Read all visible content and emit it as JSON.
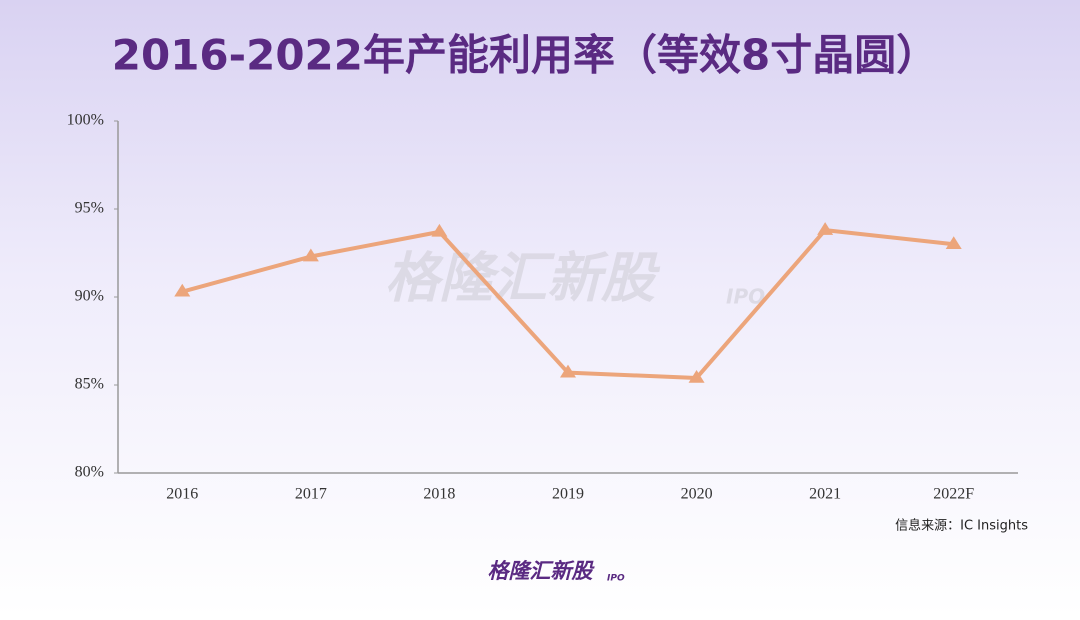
{
  "chart_data": {
    "type": "line",
    "title": "2016-2022年产能利用率（等效8寸晶圆）",
    "categories": [
      "2016",
      "2017",
      "2018",
      "2019",
      "2020",
      "2021",
      "2022F"
    ],
    "series": [
      {
        "name": "产能利用率",
        "color": "#eca57b",
        "values": [
          90.3,
          92.3,
          93.7,
          85.7,
          85.4,
          93.8,
          93.0
        ]
      }
    ],
    "ylim": [
      80,
      100
    ],
    "yticks": [
      {
        "value": 80,
        "label": "80%"
      },
      {
        "value": 85,
        "label": "85%"
      },
      {
        "value": 90,
        "label": "90%"
      },
      {
        "value": 95,
        "label": "95%"
      },
      {
        "value": 100,
        "label": "100%"
      }
    ],
    "grid": false,
    "marker": "triangle",
    "source": "信息来源：IC Insights"
  },
  "watermark": {
    "text": "格隆汇新股",
    "sub": "IPO"
  },
  "footer": {
    "logo": "格隆汇新股",
    "sub": "IPO"
  }
}
